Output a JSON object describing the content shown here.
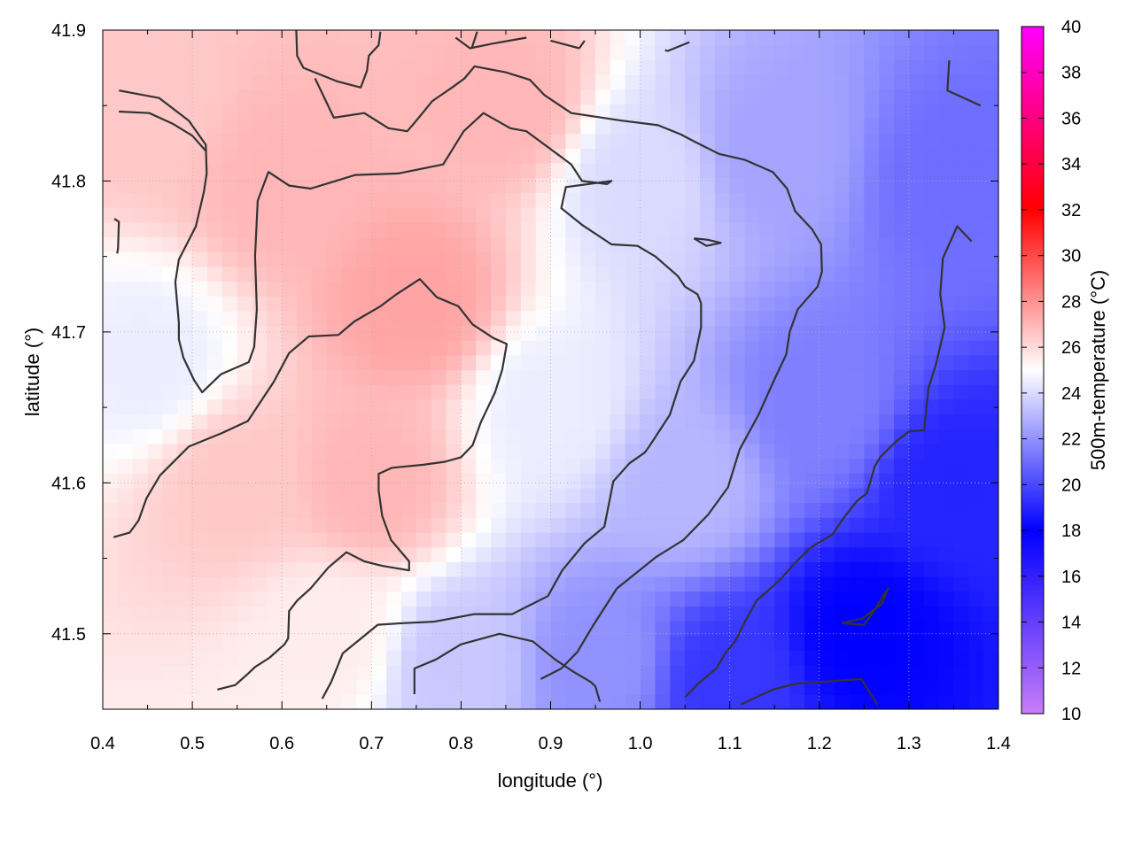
{
  "chart_data": {
    "type": "heatmap",
    "xlabel": "longitude (°)",
    "ylabel": "latitude (°)",
    "colorbar_label": "500m-temperature (°C)",
    "xlim": [
      0.4,
      1.4
    ],
    "ylim": [
      41.45,
      41.9
    ],
    "x_ticks": [
      0.4,
      0.5,
      0.6,
      0.7,
      0.8,
      0.9,
      1.0,
      1.1,
      1.2,
      1.3,
      1.4
    ],
    "x_tick_labels": [
      "0.4",
      "0.5",
      "0.6",
      "0.7",
      "0.8",
      "0.9",
      "1.0",
      "1.1",
      "1.2",
      "1.3",
      "1.4"
    ],
    "y_ticks": [
      41.5,
      41.6,
      41.7,
      41.8,
      41.9
    ],
    "y_tick_labels": [
      "41.5",
      "41.6",
      "41.7",
      "41.8",
      "41.9"
    ],
    "colorbar_range": [
      10,
      40
    ],
    "colorbar_ticks": [
      10,
      12,
      14,
      16,
      18,
      20,
      22,
      24,
      26,
      28,
      30,
      32,
      34,
      36,
      38,
      40
    ],
    "colorbar_tick_labels": [
      "10",
      "12",
      "14",
      "16",
      "18",
      "20",
      "22",
      "24",
      "26",
      "28",
      "30",
      "32",
      "34",
      "36",
      "38",
      "40"
    ],
    "colormap": [
      {
        "value": 10,
        "color": "#c87dfa"
      },
      {
        "value": 18,
        "color": "#0000ff"
      },
      {
        "value": 25,
        "color": "#ffffff"
      },
      {
        "value": 32,
        "color": "#ff0000"
      },
      {
        "value": 40,
        "color": "#ff00ff"
      }
    ],
    "grid": true,
    "contour_color": "#333333",
    "field_samples": [
      {
        "lon": 0.45,
        "lat": 41.85,
        "t": 26.5
      },
      {
        "lon": 0.6,
        "lat": 41.8,
        "t": 27.0
      },
      {
        "lon": 0.75,
        "lat": 41.72,
        "t": 27.5
      },
      {
        "lon": 0.85,
        "lat": 41.85,
        "t": 27.0
      },
      {
        "lon": 0.55,
        "lat": 41.6,
        "t": 26.5
      },
      {
        "lon": 0.7,
        "lat": 41.6,
        "t": 27.0
      },
      {
        "lon": 0.45,
        "lat": 41.68,
        "t": 24.5
      },
      {
        "lon": 0.65,
        "lat": 41.5,
        "t": 25.5
      },
      {
        "lon": 0.9,
        "lat": 41.65,
        "t": 24.5
      },
      {
        "lon": 1.0,
        "lat": 41.8,
        "t": 24.0
      },
      {
        "lon": 1.05,
        "lat": 41.6,
        "t": 23.0
      },
      {
        "lon": 1.15,
        "lat": 41.82,
        "t": 22.5
      },
      {
        "lon": 1.2,
        "lat": 41.65,
        "t": 21.5
      },
      {
        "lon": 1.35,
        "lat": 41.8,
        "t": 21.0
      },
      {
        "lon": 1.35,
        "lat": 41.6,
        "t": 19.0
      },
      {
        "lon": 1.25,
        "lat": 41.5,
        "t": 18.0
      },
      {
        "lon": 1.1,
        "lat": 41.47,
        "t": 19.5
      },
      {
        "lon": 0.95,
        "lat": 41.48,
        "t": 22.0
      },
      {
        "lon": 0.8,
        "lat": 41.48,
        "t": 23.5
      }
    ],
    "contours": [
      [
        [
          0.418,
          41.86
        ],
        [
          0.463,
          41.855
        ],
        [
          0.496,
          41.84
        ],
        [
          0.515,
          41.824
        ],
        [
          0.516,
          41.805
        ],
        [
          0.513,
          41.793
        ],
        [
          0.504,
          41.77
        ],
        [
          0.485,
          41.748
        ],
        [
          0.481,
          41.733
        ],
        [
          0.485,
          41.706
        ],
        [
          0.485,
          41.695
        ],
        [
          0.49,
          41.683
        ],
        [
          0.502,
          41.668
        ],
        [
          0.511,
          41.66
        ],
        [
          0.532,
          41.672
        ],
        [
          0.563,
          41.68
        ],
        [
          0.569,
          41.69
        ],
        [
          0.572,
          41.715
        ],
        [
          0.57,
          41.75
        ],
        [
          0.573,
          41.787
        ],
        [
          0.585,
          41.806
        ],
        [
          0.608,
          41.797
        ],
        [
          0.632,
          41.795
        ],
        [
          0.682,
          41.804
        ],
        [
          0.73,
          41.805
        ],
        [
          0.78,
          41.811
        ],
        [
          0.803,
          41.833
        ],
        [
          0.825,
          41.845
        ],
        [
          0.855,
          41.835
        ],
        [
          0.873,
          41.833
        ],
        [
          0.923,
          41.811
        ],
        [
          0.935,
          41.8
        ],
        [
          0.963,
          41.798
        ],
        [
          0.968,
          41.8
        ],
        [
          0.917,
          41.796
        ],
        [
          0.912,
          41.782
        ],
        [
          0.935,
          41.771
        ],
        [
          0.968,
          41.758
        ],
        [
          0.997,
          41.757
        ],
        [
          1.017,
          41.75
        ],
        [
          1.042,
          41.737
        ],
        [
          1.05,
          41.73
        ],
        [
          1.064,
          41.725
        ],
        [
          1.068,
          41.719
        ],
        [
          1.068,
          41.703
        ],
        [
          1.06,
          41.681
        ],
        [
          1.045,
          41.667
        ],
        [
          1.033,
          41.645
        ],
        [
          1.01,
          41.624
        ],
        [
          1.005,
          41.62
        ],
        [
          0.988,
          41.613
        ],
        [
          0.97,
          41.601
        ],
        [
          0.96,
          41.571
        ],
        [
          0.938,
          41.56
        ],
        [
          0.913,
          41.542
        ],
        [
          0.897,
          41.525
        ],
        [
          0.857,
          41.513
        ],
        [
          0.815,
          41.513
        ],
        [
          0.77,
          41.508
        ],
        [
          0.735,
          41.507
        ],
        [
          0.707,
          41.506
        ],
        [
          0.668,
          41.487
        ],
        [
          0.655,
          41.468
        ],
        [
          0.645,
          41.457
        ]
      ],
      [
        [
          0.418,
          41.846
        ],
        [
          0.452,
          41.845
        ],
        [
          0.478,
          41.838
        ],
        [
          0.5,
          41.83
        ],
        [
          0.515,
          41.82
        ]
      ],
      [
        [
          0.616,
          41.9
        ],
        [
          0.617,
          41.883
        ],
        [
          0.624,
          41.875
        ],
        [
          0.662,
          41.866
        ],
        [
          0.688,
          41.862
        ],
        [
          0.695,
          41.873
        ],
        [
          0.697,
          41.883
        ],
        [
          0.708,
          41.89
        ],
        [
          0.71,
          41.899
        ]
      ],
      [
        [
          0.794,
          41.895
        ],
        [
          0.81,
          41.888
        ],
        [
          0.835,
          41.891
        ],
        [
          0.873,
          41.895
        ]
      ],
      [
        [
          0.9,
          41.893
        ],
        [
          0.932,
          41.888
        ]
      ],
      [
        [
          0.938,
          41.893
        ],
        [
          0.932,
          41.888
        ]
      ],
      [
        [
          1.03,
          41.886
        ],
        [
          1.055,
          41.892
        ]
      ],
      [
        [
          1.03,
          41.886
        ],
        [
          1.028,
          41.887
        ]
      ],
      [
        [
          0.818,
          41.899
        ],
        [
          0.812,
          41.888
        ]
      ],
      [
        [
          0.416,
          41.752
        ],
        [
          0.417,
          41.755
        ],
        [
          0.418,
          41.773
        ],
        [
          0.413,
          41.775
        ]
      ],
      [
        [
          0.637,
          41.868
        ],
        [
          0.658,
          41.842
        ],
        [
          0.692,
          41.845
        ],
        [
          0.719,
          41.835
        ],
        [
          0.74,
          41.833
        ],
        [
          0.75,
          41.84
        ],
        [
          0.768,
          41.853
        ],
        [
          0.79,
          41.862
        ],
        [
          0.804,
          41.868
        ],
        [
          0.815,
          41.876
        ],
        [
          0.85,
          41.872
        ],
        [
          0.877,
          41.867
        ],
        [
          0.893,
          41.857
        ],
        [
          0.923,
          41.845
        ],
        [
          0.98,
          41.84
        ],
        [
          1.02,
          41.837
        ],
        [
          1.045,
          41.831
        ],
        [
          1.061,
          41.826
        ],
        [
          1.088,
          41.818
        ],
        [
          1.117,
          41.814
        ],
        [
          1.148,
          41.806
        ],
        [
          1.164,
          41.795
        ],
        [
          1.173,
          41.78
        ],
        [
          1.192,
          41.768
        ],
        [
          1.202,
          41.758
        ],
        [
          1.203,
          41.74
        ],
        [
          1.198,
          41.73
        ],
        [
          1.176,
          41.715
        ],
        [
          1.167,
          41.7
        ],
        [
          1.163,
          41.685
        ],
        [
          1.151,
          41.67
        ],
        [
          1.132,
          41.645
        ],
        [
          1.111,
          41.622
        ],
        [
          1.098,
          41.597
        ],
        [
          1.076,
          41.579
        ],
        [
          1.048,
          41.562
        ],
        [
          1.018,
          41.551
        ],
        [
          0.974,
          41.53
        ],
        [
          0.948,
          41.506
        ],
        [
          0.93,
          41.488
        ],
        [
          0.912,
          41.477
        ],
        [
          0.889,
          41.47
        ]
      ],
      [
        [
          1.06,
          41.762
        ],
        [
          1.076,
          41.761
        ],
        [
          1.09,
          41.759
        ],
        [
          1.074,
          41.757
        ],
        [
          1.06,
          41.762
        ]
      ],
      [
        [
          1.345,
          41.88
        ],
        [
          1.343,
          41.86
        ],
        [
          1.38,
          41.85
        ]
      ],
      [
        [
          1.37,
          41.76
        ],
        [
          1.354,
          41.77
        ],
        [
          1.338,
          41.749
        ],
        [
          1.335,
          41.725
        ],
        [
          1.34,
          41.703
        ],
        [
          1.33,
          41.678
        ],
        [
          1.322,
          41.663
        ],
        [
          1.317,
          41.635
        ],
        [
          1.3,
          41.634
        ],
        [
          1.285,
          41.627
        ],
        [
          1.268,
          41.617
        ],
        [
          1.262,
          41.611
        ],
        [
          1.253,
          41.593
        ],
        [
          1.242,
          41.588
        ],
        [
          1.225,
          41.575
        ],
        [
          1.215,
          41.566
        ],
        [
          1.19,
          41.557
        ],
        [
          1.173,
          41.547
        ],
        [
          1.155,
          41.535
        ],
        [
          1.13,
          41.522
        ],
        [
          1.117,
          41.508
        ],
        [
          1.106,
          41.495
        ],
        [
          1.095,
          41.487
        ],
        [
          1.085,
          41.477
        ],
        [
          1.065,
          41.467
        ],
        [
          1.05,
          41.458
        ]
      ],
      [
        [
          1.225,
          41.507
        ],
        [
          1.248,
          41.51
        ],
        [
          1.27,
          41.52
        ],
        [
          1.277,
          41.53
        ],
        [
          1.27,
          41.524
        ],
        [
          1.262,
          41.516
        ],
        [
          1.25,
          41.506
        ],
        [
          1.225,
          41.507
        ]
      ],
      [
        [
          1.112,
          41.453
        ],
        [
          1.148,
          41.463
        ],
        [
          1.175,
          41.467
        ],
        [
          1.2,
          41.468
        ],
        [
          1.247,
          41.47
        ],
        [
          1.265,
          41.453
        ]
      ],
      [
        [
          0.748,
          41.46
        ],
        [
          0.748,
          41.477
        ],
        [
          0.772,
          41.483
        ],
        [
          0.8,
          41.493
        ],
        [
          0.843,
          41.5
        ],
        [
          0.88,
          41.495
        ],
        [
          0.905,
          41.483
        ],
        [
          0.925,
          41.475
        ],
        [
          0.945,
          41.468
        ],
        [
          0.95,
          41.465
        ],
        [
          0.955,
          41.455
        ]
      ],
      [
        [
          0.528,
          41.463
        ],
        [
          0.548,
          41.466
        ],
        [
          0.563,
          41.474
        ],
        [
          0.57,
          41.478
        ],
        [
          0.586,
          41.484
        ],
        [
          0.603,
          41.493
        ],
        [
          0.607,
          41.497
        ],
        [
          0.608,
          41.515
        ],
        [
          0.617,
          41.522
        ],
        [
          0.632,
          41.53
        ],
        [
          0.652,
          41.544
        ],
        [
          0.672,
          41.554
        ],
        [
          0.692,
          41.548
        ],
        [
          0.712,
          41.545
        ],
        [
          0.742,
          41.542
        ],
        [
          0.742,
          41.548
        ],
        [
          0.722,
          41.562
        ],
        [
          0.712,
          41.578
        ],
        [
          0.708,
          41.595
        ],
        [
          0.708,
          41.606
        ],
        [
          0.723,
          41.61
        ],
        [
          0.758,
          41.612
        ],
        [
          0.782,
          41.614
        ],
        [
          0.8,
          41.617
        ],
        [
          0.813,
          41.625
        ],
        [
          0.822,
          41.64
        ],
        [
          0.838,
          41.66
        ],
        [
          0.846,
          41.675
        ],
        [
          0.851,
          41.692
        ],
        [
          0.836,
          41.696
        ],
        [
          0.813,
          41.705
        ],
        [
          0.797,
          41.717
        ],
        [
          0.773,
          41.723
        ],
        [
          0.754,
          41.735
        ],
        [
          0.728,
          41.725
        ],
        [
          0.71,
          41.717
        ],
        [
          0.681,
          41.707
        ],
        [
          0.663,
          41.698
        ],
        [
          0.63,
          41.697
        ],
        [
          0.608,
          41.686
        ],
        [
          0.591,
          41.667
        ],
        [
          0.572,
          41.65
        ],
        [
          0.562,
          41.641
        ],
        [
          0.533,
          41.633
        ],
        [
          0.496,
          41.624
        ],
        [
          0.464,
          41.605
        ],
        [
          0.449,
          41.59
        ],
        [
          0.44,
          41.575
        ],
        [
          0.43,
          41.567
        ],
        [
          0.412,
          41.564
        ]
      ]
    ]
  }
}
